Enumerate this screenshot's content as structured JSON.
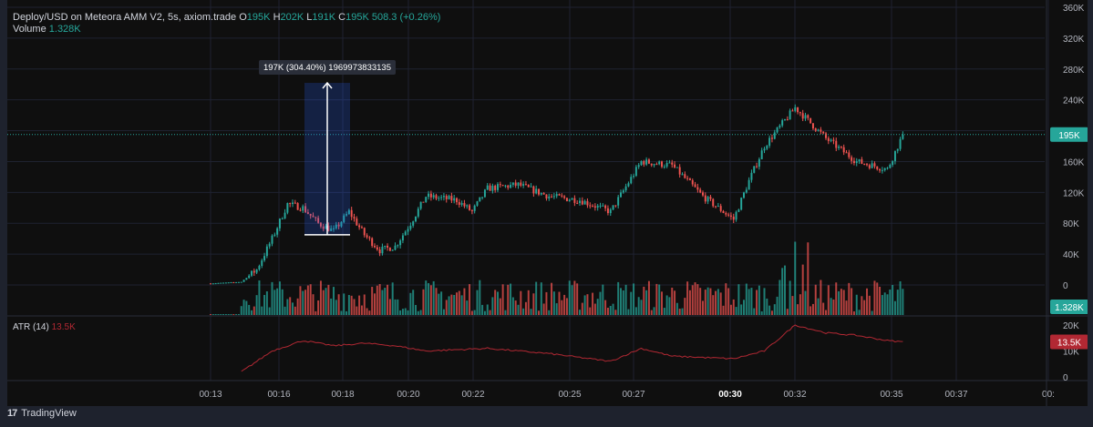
{
  "legend": {
    "symbol": "Deploy/USD on Meteora AMM V2, 5s, axiom.trade",
    "o_label": "O",
    "o_value": "195K",
    "h_label": "H",
    "h_value": "202K",
    "l_label": "L",
    "l_value": "191K",
    "c_label": "C",
    "c_value": "195K",
    "change": "508.3 (+0.26%)",
    "volume_label": "Volume",
    "volume_value": "1.328K"
  },
  "atr_legend": {
    "label": "ATR (14)",
    "value": "13.5K"
  },
  "measure_label": "197K (304.40%) 1969973833135",
  "price_badge": "195K",
  "volume_badge": "1.328K",
  "atr_badge": "13.5K",
  "footer": {
    "brand": "TradingView"
  },
  "colors": {
    "up": "#26a69a",
    "down": "#ef5350",
    "atr": "#b22833",
    "background": "#0f0f0f"
  },
  "chart_data": [
    {
      "type": "candlestick",
      "title": "Deploy/USD on Meteora AMM V2, 5s, axiom.trade",
      "ylim": [
        0,
        360000
      ],
      "y_ticks": [
        "0",
        "40K",
        "80K",
        "120K",
        "160K",
        "200K",
        "240K",
        "280K",
        "320K",
        "360K"
      ],
      "x_ticks": [
        "00:13",
        "00:16",
        "00:18",
        "00:20",
        "00:22",
        "00:25",
        "00:27",
        "00:30",
        "00:32",
        "00:35",
        "00:37",
        "00:"
      ],
      "close_profile": [
        [
          "00:13",
          2000
        ],
        [
          "00:14",
          4000
        ],
        [
          "00:14:30",
          20000
        ],
        [
          "00:15",
          60000
        ],
        [
          "00:15:30",
          105000
        ],
        [
          "00:16",
          100000
        ],
        [
          "00:16:30",
          80000
        ],
        [
          "00:17",
          70000
        ],
        [
          "00:17:30",
          95000
        ],
        [
          "00:18",
          65000
        ],
        [
          "00:18:30",
          45000
        ],
        [
          "00:19",
          50000
        ],
        [
          "00:19:30",
          80000
        ],
        [
          "00:20",
          115000
        ],
        [
          "00:21",
          110000
        ],
        [
          "00:21:30",
          95000
        ],
        [
          "00:22",
          125000
        ],
        [
          "00:23",
          130000
        ],
        [
          "00:24",
          115000
        ],
        [
          "00:25",
          110000
        ],
        [
          "00:26",
          95000
        ],
        [
          "00:27",
          160000
        ],
        [
          "00:28",
          155000
        ],
        [
          "00:29",
          115000
        ],
        [
          "00:30",
          85000
        ],
        [
          "00:30:30",
          135000
        ],
        [
          "00:31",
          180000
        ],
        [
          "00:32",
          230000
        ],
        [
          "00:33",
          190000
        ],
        [
          "00:34",
          160000
        ],
        [
          "00:35",
          150000
        ],
        [
          "00:35:30",
          195000
        ]
      ],
      "last_price": 195000,
      "measure": {
        "from": 65000,
        "to": 262000,
        "text": "197K (304.40%) 1969973833135"
      }
    },
    {
      "type": "bar",
      "title": "Volume",
      "last_value": "1.328K"
    },
    {
      "type": "line",
      "title": "ATR (14)",
      "ylim": [
        0,
        20000
      ],
      "y_ticks": [
        "0",
        "10K",
        "20K"
      ],
      "profile": [
        [
          "00:13",
          0
        ],
        [
          "00:14",
          2000
        ],
        [
          "00:15",
          10000
        ],
        [
          "00:16",
          14000
        ],
        [
          "00:17",
          12000
        ],
        [
          "00:18",
          13000
        ],
        [
          "00:19",
          12000
        ],
        [
          "00:20",
          10000
        ],
        [
          "00:22",
          11000
        ],
        [
          "00:24",
          9000
        ],
        [
          "00:26",
          6000
        ],
        [
          "00:27",
          11000
        ],
        [
          "00:28",
          8000
        ],
        [
          "00:30",
          7000
        ],
        [
          "00:31",
          10000
        ],
        [
          "00:32",
          20000
        ],
        [
          "00:33",
          17000
        ],
        [
          "00:34",
          16000
        ],
        [
          "00:35",
          14000
        ],
        [
          "00:35:30",
          13500
        ]
      ],
      "last_value": "13.5K"
    }
  ]
}
